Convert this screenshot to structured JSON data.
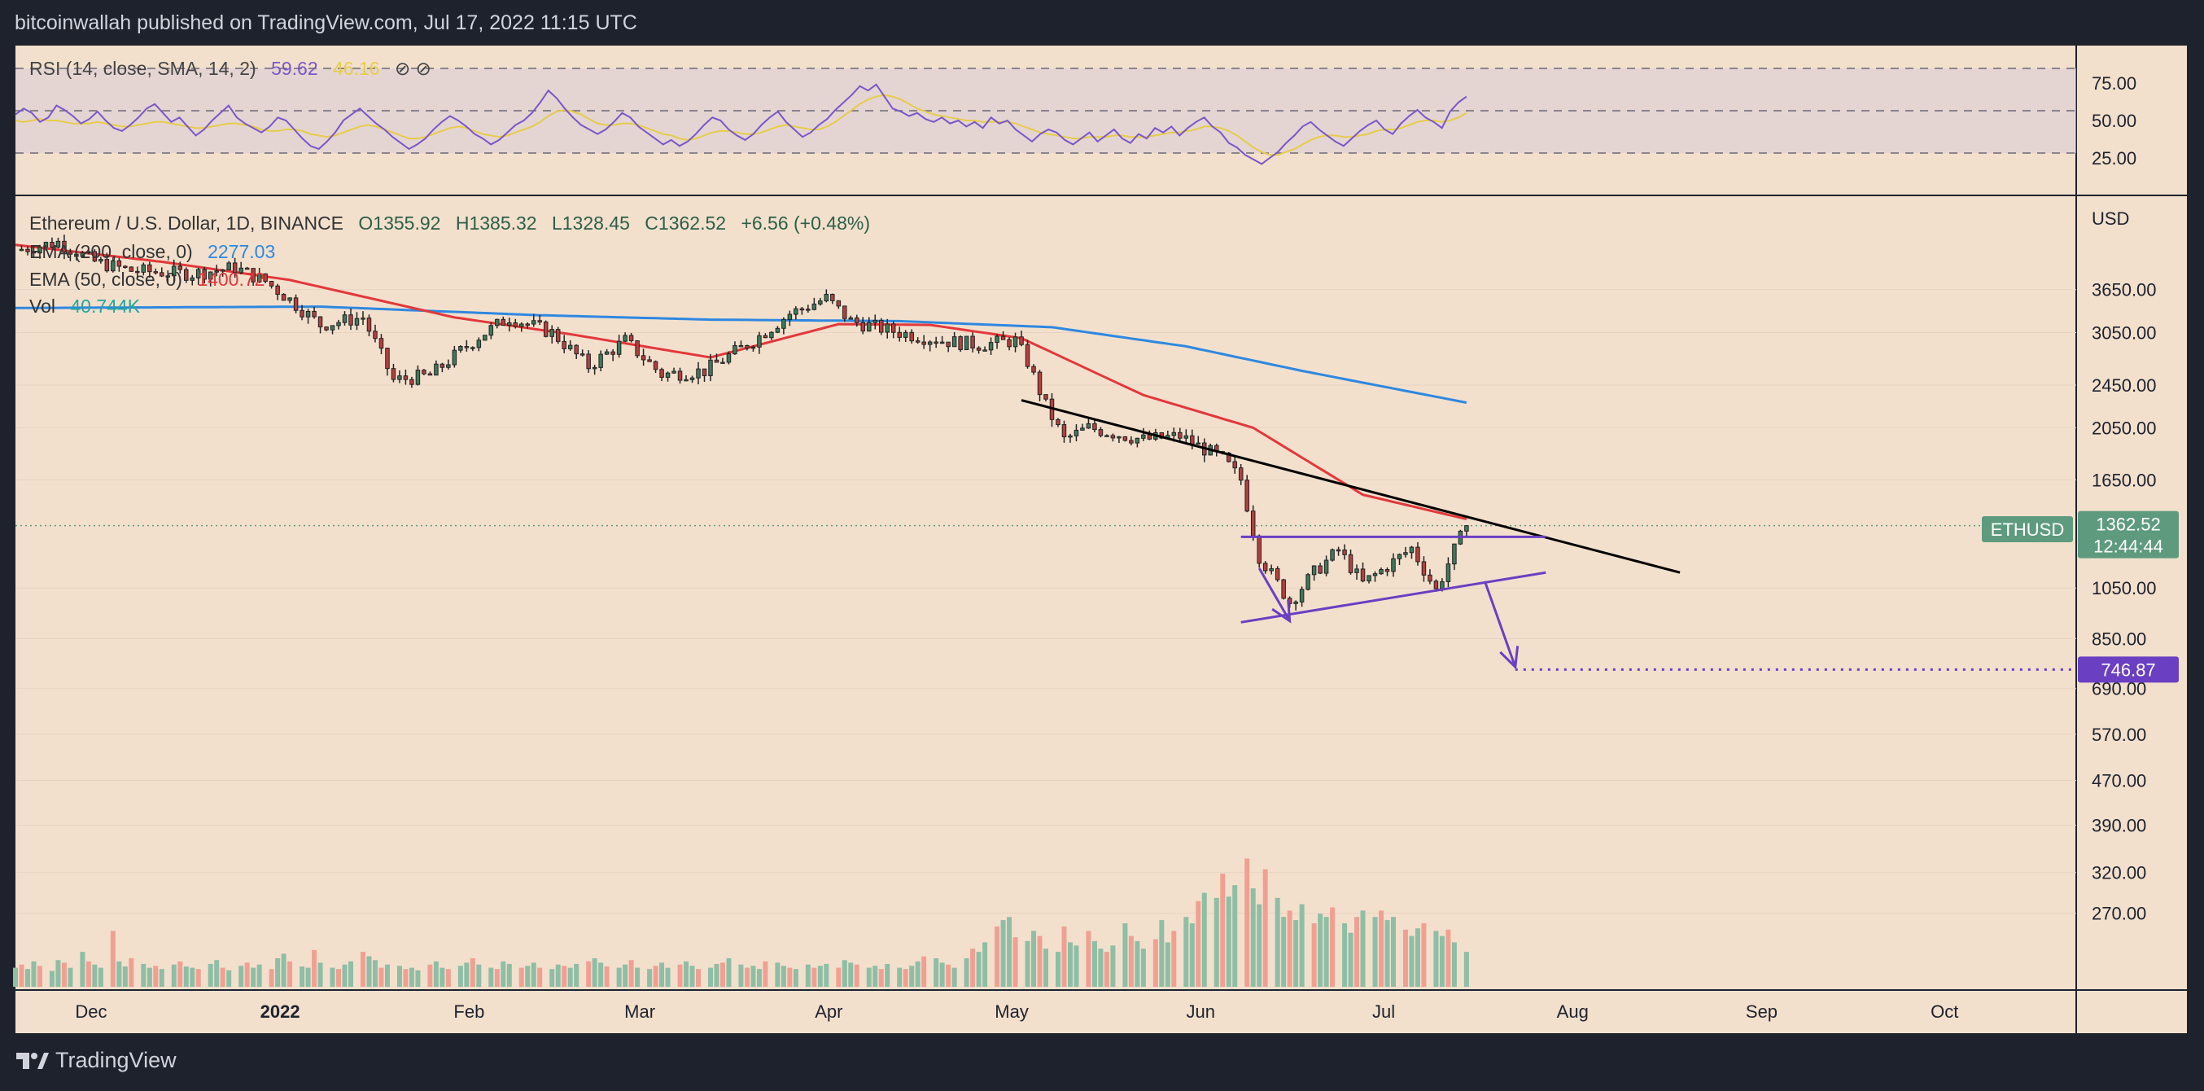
{
  "header": {
    "publisher": "bitcoinwallah published on TradingView.com, Jul 17, 2022 11:15 UTC"
  },
  "footer": {
    "brand": "TradingView"
  },
  "colors": {
    "background": "#f2e0cd",
    "frame": "#1e222d",
    "up": "#3d7a5a",
    "down": "#b5403f",
    "ema200": "#2e88e0",
    "ema50": "#e3373a",
    "rsi": "#7a56c8",
    "rsi_sma": "#e6cc4a",
    "pattern": "#6a3fc2",
    "trendline": "#000000",
    "vol_up": "#8ebea5",
    "vol_down": "#f0a092",
    "last_price_tag": "#5e9b7e",
    "target_tag": "#6a3fc2"
  },
  "chart_data": [
    {
      "type": "line",
      "panel": "rsi",
      "legend": {
        "name": "RSI (14, close, SMA, 14, 2)",
        "rsi_value": "59.62",
        "sma_value": "46.16",
        "icons": "⊘ ⊘"
      },
      "y_ticks": [
        "75.00",
        "50.00",
        "25.00"
      ],
      "ylim": [
        0,
        100
      ],
      "levels": [
        70,
        50,
        30
      ],
      "rsi_samples": [
        54,
        58,
        55,
        49,
        52,
        60,
        57,
        53,
        48,
        51,
        56,
        50,
        45,
        43,
        47,
        52,
        58,
        61,
        55,
        49,
        52,
        46,
        40,
        44,
        50,
        55,
        60,
        52,
        48,
        45,
        42,
        46,
        52,
        50,
        44,
        38,
        33,
        31,
        36,
        42,
        50,
        54,
        58,
        53,
        48,
        44,
        39,
        35,
        31,
        34,
        38,
        44,
        49,
        53,
        50,
        46,
        41,
        38,
        34,
        37,
        42,
        47,
        50,
        55,
        62,
        70,
        65,
        58,
        52,
        47,
        44,
        41,
        44,
        49,
        55,
        52,
        46,
        42,
        38,
        34,
        37,
        33,
        36,
        41,
        47,
        52,
        50,
        44,
        40,
        37,
        41,
        47,
        52,
        56,
        49,
        44,
        39,
        42,
        47,
        51,
        57,
        62,
        67,
        73,
        70,
        74,
        66,
        58,
        56,
        53,
        55,
        51,
        49,
        52,
        48,
        50,
        46,
        49,
        45,
        52,
        48,
        50,
        44,
        40,
        36,
        41,
        44,
        42,
        37,
        34,
        38,
        42,
        36,
        40,
        44,
        38,
        35,
        41,
        38,
        45,
        42,
        46,
        40,
        45,
        49,
        52,
        46,
        42,
        35,
        32,
        27,
        24,
        21,
        25,
        29,
        35,
        40,
        46,
        49,
        44,
        40,
        36,
        33,
        38,
        43,
        47,
        50,
        44,
        41,
        48,
        53,
        57,
        52,
        49,
        45,
        56,
        62,
        66
      ],
      "sma_samples": [
        50,
        49,
        50,
        51,
        50,
        50,
        49,
        48,
        48,
        48,
        49,
        48,
        47,
        46,
        46,
        47,
        48,
        49,
        49,
        48,
        47,
        46,
        45,
        45,
        46,
        47,
        48,
        48,
        47,
        46,
        44,
        43,
        43,
        44,
        44,
        43,
        41,
        40,
        39,
        40,
        42,
        44,
        46,
        47,
        46,
        44,
        42,
        40,
        38,
        38,
        39,
        41,
        43,
        45,
        46,
        45,
        43,
        41,
        40,
        39,
        40,
        42,
        44,
        46,
        49,
        53,
        56,
        57,
        56,
        54,
        51,
        48,
        47,
        47,
        48,
        48,
        47,
        45,
        43,
        41,
        40,
        38,
        37,
        38,
        40,
        42,
        43,
        43,
        42,
        41,
        41,
        42,
        44,
        46,
        47,
        46,
        45,
        44,
        44,
        46,
        49,
        53,
        57,
        61,
        64,
        66,
        67,
        66,
        64,
        61,
        58,
        56,
        54,
        53,
        52,
        51,
        50,
        50,
        49,
        49,
        49,
        49,
        48,
        46,
        44,
        42,
        41,
        40,
        39,
        38,
        38,
        39,
        39,
        39,
        40,
        40,
        39,
        39,
        39,
        40,
        41,
        42,
        42,
        43,
        44,
        46,
        46,
        45,
        43,
        40,
        36,
        32,
        29,
        27,
        27,
        29,
        31,
        34,
        37,
        39,
        40,
        40,
        39,
        39,
        40,
        41,
        43,
        44,
        44,
        45,
        47,
        49,
        50,
        50,
        49,
        50,
        52,
        55
      ]
    },
    {
      "type": "candlestick",
      "panel": "price",
      "symbol_text": "Ethereum / U.S. Dollar, 1D, BINANCE",
      "ohlc_text": {
        "open": "O1355.92",
        "high": "H1385.32",
        "low": "L1328.45",
        "close": "C1362.52",
        "change": "+6.56 (+0.48%)"
      },
      "y_axis_title": "USD",
      "y_scale": "log",
      "ylim": [
        200,
        5300
      ],
      "y_ticks": [
        3650,
        3050,
        2450,
        2050,
        1650,
        1050,
        850,
        690,
        570,
        470,
        390,
        320,
        270
      ],
      "y_tick_labels": [
        "3650.00",
        "3050.00",
        "2450.00",
        "2050.00",
        "1650.00",
        "1050.00",
        "850.00",
        "690.00",
        "570.00",
        "470.00",
        "390.00",
        "320.00",
        "270.00"
      ],
      "x_labels": [
        "Dec",
        "2022",
        "Feb",
        "Mar",
        "Apr",
        "May",
        "Jun",
        "Jul",
        "Aug",
        "Sep",
        "Oct"
      ],
      "x_range": [
        "2021-11-21",
        "2022-10-25"
      ],
      "close_waypoints": [
        [
          "2021-11-21",
          4300
        ],
        [
          "2021-11-28",
          4450
        ],
        [
          "2021-12-04",
          4100
        ],
        [
          "2021-12-10",
          3950
        ],
        [
          "2021-12-20",
          3900
        ],
        [
          "2021-12-27",
          4000
        ],
        [
          "2022-01-01",
          3780
        ],
        [
          "2022-01-05",
          3500
        ],
        [
          "2022-01-10",
          3150
        ],
        [
          "2022-01-17",
          3250
        ],
        [
          "2022-01-22",
          2500
        ],
        [
          "2022-01-28",
          2550
        ],
        [
          "2022-02-05",
          3000
        ],
        [
          "2022-02-10",
          3250
        ],
        [
          "2022-02-17",
          3050
        ],
        [
          "2022-02-23",
          2650
        ],
        [
          "2022-03-01",
          2950
        ],
        [
          "2022-03-07",
          2560
        ],
        [
          "2022-03-14",
          2600
        ],
        [
          "2022-03-22",
          2950
        ],
        [
          "2022-03-28",
          3300
        ],
        [
          "2022-04-03",
          3520
        ],
        [
          "2022-04-07",
          3200
        ],
        [
          "2022-04-15",
          3050
        ],
        [
          "2022-04-22",
          2950
        ],
        [
          "2022-04-28",
          2900
        ],
        [
          "2022-05-04",
          2950
        ],
        [
          "2022-05-06",
          2700
        ],
        [
          "2022-05-09",
          2250
        ],
        [
          "2022-05-12",
          1950
        ],
        [
          "2022-05-16",
          2050
        ],
        [
          "2022-05-25",
          1950
        ],
        [
          "2022-05-31",
          1980
        ],
        [
          "2022-06-07",
          1800
        ],
        [
          "2022-06-10",
          1650
        ],
        [
          "2022-06-13",
          1200
        ],
        [
          "2022-06-16",
          1070
        ],
        [
          "2022-06-18",
          990
        ],
        [
          "2022-06-22",
          1120
        ],
        [
          "2022-06-26",
          1230
        ],
        [
          "2022-06-30",
          1070
        ],
        [
          "2022-07-04",
          1150
        ],
        [
          "2022-07-08",
          1240
        ],
        [
          "2022-07-12",
          1040
        ],
        [
          "2022-07-15",
          1230
        ],
        [
          "2022-07-17",
          1362.52
        ]
      ],
      "indicators": [
        {
          "name": "EMA (200, close, 0)",
          "value": "2277.03",
          "waypoints": [
            [
              "2021-11-21",
              3380
            ],
            [
              "2022-01-10",
              3400
            ],
            [
              "2022-02-15",
              3280
            ],
            [
              "2022-03-15",
              3220
            ],
            [
              "2022-04-15",
              3200
            ],
            [
              "2022-05-10",
              3120
            ],
            [
              "2022-06-01",
              2880
            ],
            [
              "2022-06-20",
              2600
            ],
            [
              "2022-07-17",
              2277
            ]
          ]
        },
        {
          "name": "EMA (50, close, 0)",
          "value": "1400.72",
          "waypoints": [
            [
              "2021-11-21",
              4400
            ],
            [
              "2021-12-15",
              4100
            ],
            [
              "2022-01-05",
              3800
            ],
            [
              "2022-02-01",
              3250
            ],
            [
              "2022-02-20",
              3030
            ],
            [
              "2022-03-15",
              2750
            ],
            [
              "2022-04-05",
              3160
            ],
            [
              "2022-04-20",
              3150
            ],
            [
              "2022-05-05",
              2980
            ],
            [
              "2022-05-25",
              2350
            ],
            [
              "2022-06-12",
              2050
            ],
            [
              "2022-06-30",
              1550
            ],
            [
              "2022-07-17",
              1400
            ]
          ]
        },
        {
          "name": "Vol",
          "value": "40.744K"
        }
      ],
      "drawings": {
        "descending_trendline": [
          [
            "2022-05-05",
            2300
          ],
          [
            "2022-08-21",
            1120
          ]
        ],
        "resistance_line": [
          [
            "2022-06-10",
            1300
          ],
          [
            "2022-07-30",
            1300
          ]
        ],
        "support_line": [
          [
            "2022-06-10",
            910
          ],
          [
            "2022-07-30",
            1120
          ]
        ],
        "arrow_down_1": [
          [
            "2022-06-13",
            1140
          ],
          [
            "2022-06-18",
            915
          ]
        ],
        "arrow_down_2": [
          [
            "2022-07-20",
            1080
          ],
          [
            "2022-07-25",
            755
          ]
        ],
        "target_line": [
          [
            "2022-07-25",
            746.87
          ],
          [
            "2022-10-25",
            746.87
          ]
        ]
      },
      "price_tags": [
        {
          "symbol": "ETHUSD",
          "price": "1362.52",
          "countdown": "12:44:44"
        },
        {
          "price": "746.87"
        }
      ]
    },
    {
      "type": "bar",
      "panel": "volume",
      "name": "Vol",
      "samples": [
        0.3,
        0.35,
        0.28,
        0.4,
        0.33,
        0.25,
        0.42,
        0.38,
        0.3,
        0.55,
        0.4,
        0.35,
        0.3,
        0.88,
        0.4,
        0.32,
        0.45,
        0.36,
        0.3,
        0.33,
        0.28,
        0.35,
        0.4,
        0.32,
        0.3,
        0.28,
        0.36,
        0.42,
        0.3,
        0.26,
        0.33,
        0.38,
        0.3,
        0.35,
        0.28,
        0.45,
        0.52,
        0.4,
        0.32,
        0.3,
        0.58,
        0.38,
        0.3,
        0.28,
        0.35,
        0.4,
        0.55,
        0.48,
        0.42,
        0.3,
        0.35,
        0.33,
        0.28,
        0.3,
        0.26,
        0.35,
        0.4,
        0.3,
        0.28,
        0.33,
        0.38,
        0.45,
        0.35,
        0.3,
        0.28,
        0.4,
        0.36,
        0.3,
        0.33,
        0.38,
        0.3,
        0.28,
        0.35,
        0.33,
        0.3,
        0.36,
        0.4,
        0.45,
        0.38,
        0.32,
        0.3,
        0.35,
        0.42,
        0.3,
        0.28,
        0.33,
        0.38,
        0.3,
        0.35,
        0.4,
        0.33,
        0.28,
        0.3,
        0.36,
        0.38,
        0.45,
        0.35,
        0.3,
        0.33,
        0.28,
        0.4,
        0.38,
        0.33,
        0.3,
        0.28,
        0.35,
        0.3,
        0.33,
        0.36,
        0.3,
        0.42,
        0.38,
        0.35,
        0.3,
        0.33,
        0.28,
        0.36,
        0.3,
        0.28,
        0.33,
        0.4,
        0.48,
        0.45,
        0.38,
        0.35,
        0.3,
        0.45,
        0.6,
        0.55,
        0.7,
        0.95,
        1.05,
        1.1,
        0.78,
        0.72,
        0.88,
        0.8,
        0.6,
        0.55,
        0.95,
        0.7,
        0.65,
        0.88,
        0.72,
        0.6,
        0.55,
        0.65,
        1.0,
        0.8,
        0.72,
        0.6,
        0.75,
        1.05,
        0.7,
        0.88,
        1.1,
        1.0,
        1.35,
        1.48,
        1.4,
        1.78,
        1.42,
        1.6,
        2.02,
        1.55,
        1.3,
        1.85,
        1.4,
        1.1,
        1.2,
        1.05,
        1.3,
        1.0,
        1.15,
        1.1,
        1.25,
        1.0,
        0.85,
        1.1,
        1.2,
        1.1,
        1.2,
        1.05,
        1.1,
        0.9,
        0.8,
        0.92,
        1.0,
        0.88,
        0.8,
        0.9,
        0.7,
        0.55
      ],
      "sample_unit": "relative height, 1.0 = typical volume"
    }
  ]
}
